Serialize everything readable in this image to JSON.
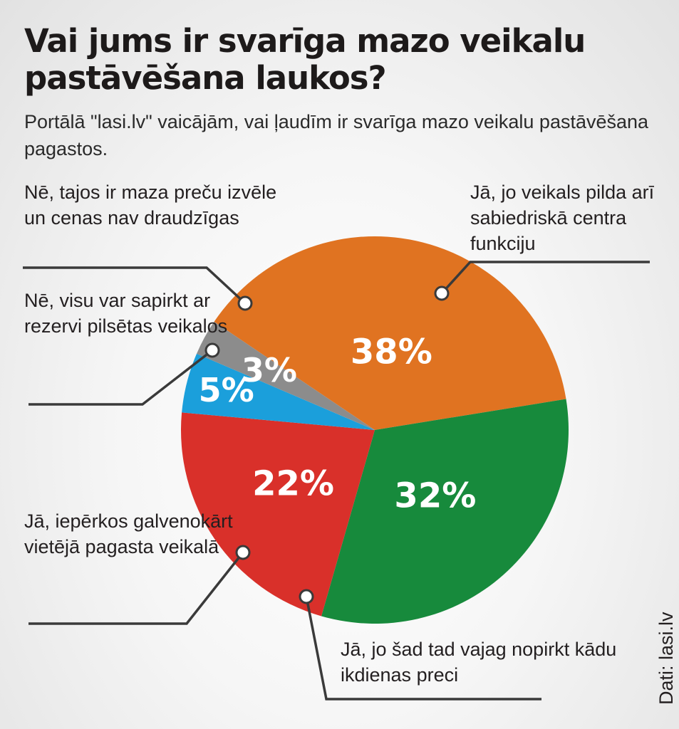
{
  "title": "Vai jums ir svarīga mazo veikalu pastāvēšana laukos?",
  "subtitle": "Portālā \"lasi.lv\" vaicājām, vai ļaudīm ir svarīga mazo veikalu pastāvēšana pagastos.",
  "source": "Dati: lasi.lv",
  "colors": {
    "orange": "#e07321",
    "green": "#178a3c",
    "red": "#d9302a",
    "blue": "#1b9fdb",
    "gray": "#8c8c8c",
    "leader": "#3a3a3a"
  },
  "chart_data": {
    "type": "pie",
    "title": "Vai jums ir svarīga mazo veikalu pastāvēšana laukos?",
    "slices": [
      {
        "key": "orange",
        "label": "Jā, jo veikals pilda arī sabiedriskā centra funkciju",
        "value": 38,
        "display": "38%"
      },
      {
        "key": "green",
        "label": "Jā, jo šad tad vajag nopirkt kādu ikdienas preci",
        "value": 32,
        "display": "32%"
      },
      {
        "key": "red",
        "label": "Jā, iepērkos galvenokārt vietējā pagasta veikalā",
        "value": 22,
        "display": "22%"
      },
      {
        "key": "blue",
        "label": "Nē, visu var sapirkt ar rezervi pilsētas veikalos",
        "value": 5,
        "display": "5%"
      },
      {
        "key": "gray",
        "label": "Nē, tajos ir maza preču izvēle un cenas nav draudzīgas",
        "value": 3,
        "display": "3%"
      }
    ]
  }
}
